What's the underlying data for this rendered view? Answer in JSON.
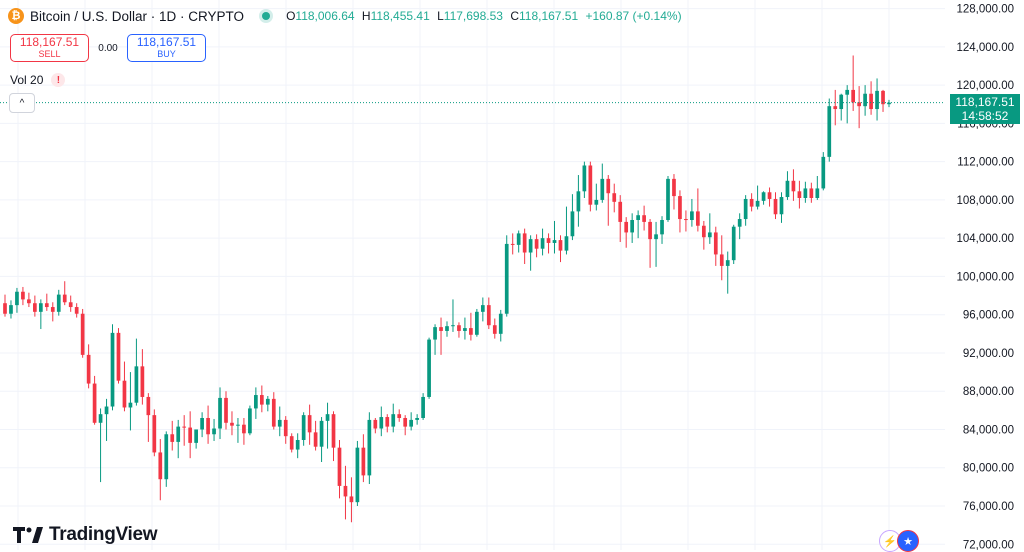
{
  "header": {
    "coin_glyph": "₿",
    "title": "Bitcoin / U.S. Dollar · 1D · CRYPTO",
    "ohlc": {
      "o_key": "O",
      "o": "118,006.64",
      "h_key": "H",
      "h": "118,455.41",
      "l_key": "L",
      "l": "117,698.53",
      "c_key": "C",
      "c": "118,167.51",
      "change": "+160.87 (+0.14%)"
    }
  },
  "trade": {
    "sell_price": "118,167.51",
    "sell_label": "SELL",
    "spread": "0.00",
    "buy_price": "118,167.51",
    "buy_label": "BUY"
  },
  "volume": {
    "label": "Vol 20",
    "warning_glyph": "!"
  },
  "collapse_glyph": "^",
  "last_price": {
    "price": "118,167.51",
    "countdown": "14:58:52"
  },
  "logo": {
    "text": "TradingView"
  },
  "colors": {
    "up": "#089981",
    "down": "#f23645",
    "text": "#131722",
    "grid": "#f0f3fa"
  },
  "chart_data": {
    "type": "candlestick",
    "symbol": "Bitcoin / U.S. Dollar",
    "interval": "1D",
    "y_ticks": [
      "128,000.00",
      "124,000.00",
      "120,000.00",
      "116,000.00",
      "112,000.00",
      "108,000.00",
      "104,000.00",
      "100,000.00",
      "96,000.00",
      "92,000.00",
      "88,000.00",
      "84,000.00",
      "80,000.00",
      "76,000.00",
      "72,000.00"
    ],
    "y_tick_values": [
      128000,
      124000,
      120000,
      116000,
      112000,
      108000,
      104000,
      100000,
      96000,
      92000,
      88000,
      84000,
      80000,
      76000,
      72000
    ],
    "ylim": [
      71400,
      128900
    ],
    "last_price": 118167.51,
    "candles": [
      [
        97200,
        98100,
        95800,
        96100
      ],
      [
        96100,
        97500,
        95600,
        97000
      ],
      [
        97000,
        98800,
        96200,
        98400
      ],
      [
        98400,
        98900,
        97000,
        97600
      ],
      [
        97600,
        98300,
        96800,
        97200
      ],
      [
        97200,
        98000,
        95800,
        96300
      ],
      [
        96300,
        97600,
        94500,
        97200
      ],
      [
        97200,
        98200,
        96400,
        96800
      ],
      [
        96800,
        97300,
        95300,
        96300
      ],
      [
        96300,
        98600,
        95900,
        98100
      ],
      [
        98100,
        99500,
        97000,
        97300
      ],
      [
        97300,
        98000,
        96300,
        96800
      ],
      [
        96800,
        97200,
        95700,
        96100
      ],
      [
        96100,
        96600,
        91500,
        91800
      ],
      [
        91800,
        92900,
        88300,
        88800
      ],
      [
        88800,
        89600,
        84500,
        84700
      ],
      [
        84700,
        86200,
        78500,
        85600
      ],
      [
        85600,
        87200,
        82800,
        86400
      ],
      [
        86400,
        95000,
        86000,
        94100
      ],
      [
        94100,
        94600,
        88800,
        89100
      ],
      [
        89100,
        91100,
        85900,
        86300
      ],
      [
        86300,
        90000,
        83900,
        86800
      ],
      [
        86800,
        93500,
        86500,
        90600
      ],
      [
        90600,
        92400,
        86600,
        87400
      ],
      [
        87400,
        87800,
        82700,
        85500
      ],
      [
        85500,
        86100,
        81200,
        81600
      ],
      [
        81600,
        83000,
        76600,
        78800
      ],
      [
        78800,
        83800,
        78000,
        83500
      ],
      [
        83500,
        84900,
        81800,
        82700
      ],
      [
        82700,
        85000,
        81000,
        84300
      ],
      [
        84300,
        85500,
        82300,
        84200
      ],
      [
        84200,
        85900,
        81000,
        82600
      ],
      [
        82600,
        84000,
        82000,
        84000
      ],
      [
        84000,
        85800,
        83200,
        85200
      ],
      [
        85200,
        86500,
        82500,
        83500
      ],
      [
        83500,
        85100,
        82800,
        84100
      ],
      [
        84100,
        88400,
        83000,
        87300
      ],
      [
        87300,
        88000,
        84000,
        84700
      ],
      [
        84700,
        85900,
        83400,
        84400
      ],
      [
        84400,
        85200,
        82600,
        84500
      ],
      [
        84500,
        85200,
        82400,
        83600
      ],
      [
        83600,
        86500,
        83400,
        86200
      ],
      [
        86200,
        88400,
        85100,
        87600
      ],
      [
        87600,
        88600,
        85800,
        86600
      ],
      [
        86600,
        87500,
        85900,
        87200
      ],
      [
        87200,
        87900,
        84000,
        84300
      ],
      [
        84300,
        86400,
        83300,
        85000
      ],
      [
        85000,
        85400,
        82500,
        83300
      ],
      [
        83300,
        83600,
        81600,
        81900
      ],
      [
        81900,
        83600,
        81000,
        82900
      ],
      [
        82900,
        85800,
        82300,
        85500
      ],
      [
        85500,
        86600,
        82400,
        83700
      ],
      [
        83700,
        84900,
        81800,
        82200
      ],
      [
        82200,
        85300,
        80600,
        84900
      ],
      [
        84900,
        86800,
        82000,
        85600
      ],
      [
        85600,
        85900,
        80700,
        82100
      ],
      [
        82100,
        82900,
        76800,
        78100
      ],
      [
        78100,
        80200,
        74600,
        77000
      ],
      [
        77000,
        79000,
        74300,
        76400
      ],
      [
        76400,
        82800,
        76000,
        82100
      ],
      [
        82100,
        83500,
        78500,
        79200
      ],
      [
        79200,
        85800,
        78300,
        85000
      ],
      [
        85000,
        85200,
        83600,
        84100
      ],
      [
        84100,
        86400,
        83300,
        85300
      ],
      [
        85300,
        85600,
        83700,
        84300
      ],
      [
        84300,
        86700,
        83700,
        85600
      ],
      [
        85600,
        86100,
        84800,
        85200
      ],
      [
        85200,
        85500,
        83400,
        84300
      ],
      [
        84300,
        85800,
        83900,
        85000
      ],
      [
        85000,
        85600,
        84500,
        85200
      ],
      [
        85200,
        87800,
        85000,
        87400
      ],
      [
        87400,
        93600,
        87200,
        93400
      ],
      [
        93400,
        95000,
        91800,
        94700
      ],
      [
        94700,
        95700,
        91800,
        94300
      ],
      [
        94300,
        95300,
        93700,
        94800
      ],
      [
        94800,
        97600,
        94200,
        94900
      ],
      [
        94900,
        95200,
        93600,
        94300
      ],
      [
        94300,
        95700,
        93400,
        94600
      ],
      [
        94600,
        96200,
        93300,
        93900
      ],
      [
        93900,
        96600,
        93700,
        96300
      ],
      [
        96300,
        97800,
        95300,
        97000
      ],
      [
        97000,
        97800,
        94500,
        94900
      ],
      [
        94900,
        95600,
        93500,
        94000
      ],
      [
        94000,
        96500,
        93200,
        96100
      ],
      [
        96100,
        104300,
        95800,
        103400
      ],
      [
        103400,
        104500,
        102300,
        103300
      ],
      [
        103300,
        104800,
        102500,
        104500
      ],
      [
        104500,
        105000,
        101300,
        102500
      ],
      [
        102500,
        104300,
        100600,
        103900
      ],
      [
        103900,
        104400,
        102000,
        102900
      ],
      [
        102900,
        105000,
        102200,
        104000
      ],
      [
        104000,
        104500,
        102400,
        103500
      ],
      [
        103500,
        105800,
        102400,
        103800
      ],
      [
        103800,
        104300,
        101500,
        102700
      ],
      [
        102700,
        107300,
        102300,
        104200
      ],
      [
        104200,
        108600,
        103800,
        106800
      ],
      [
        106800,
        110600,
        105200,
        108900
      ],
      [
        108900,
        112000,
        108200,
        111600
      ],
      [
        111600,
        112000,
        106800,
        107500
      ],
      [
        107500,
        109700,
        106900,
        108000
      ],
      [
        108000,
        111800,
        107700,
        110200
      ],
      [
        110200,
        110600,
        105300,
        108700
      ],
      [
        108700,
        109700,
        106700,
        107800
      ],
      [
        107800,
        108500,
        103600,
        105700
      ],
      [
        105700,
        106200,
        103000,
        104600
      ],
      [
        104600,
        106600,
        103500,
        105900
      ],
      [
        105900,
        106900,
        104000,
        106400
      ],
      [
        106400,
        107400,
        104800,
        105700
      ],
      [
        105700,
        106000,
        100900,
        103900
      ],
      [
        103900,
        105700,
        101000,
        104400
      ],
      [
        104400,
        106300,
        103400,
        105900
      ],
      [
        105900,
        110500,
        105700,
        110200
      ],
      [
        110200,
        110700,
        107000,
        108400
      ],
      [
        108400,
        109000,
        104600,
        106000
      ],
      [
        106000,
        106900,
        104700,
        105900
      ],
      [
        105900,
        108100,
        105200,
        106800
      ],
      [
        106800,
        109200,
        104700,
        105300
      ],
      [
        105300,
        105800,
        102800,
        104100
      ],
      [
        104100,
        106600,
        103400,
        104600
      ],
      [
        104600,
        105200,
        101100,
        102300
      ],
      [
        102300,
        104300,
        99600,
        101100
      ],
      [
        101100,
        102600,
        98200,
        101700
      ],
      [
        101700,
        105400,
        101300,
        105200
      ],
      [
        105200,
        106600,
        103900,
        106000
      ],
      [
        106000,
        108500,
        105300,
        108100
      ],
      [
        108100,
        108700,
        106800,
        107300
      ],
      [
        107300,
        109500,
        107000,
        107900
      ],
      [
        107900,
        108900,
        107500,
        108800
      ],
      [
        108800,
        109300,
        107300,
        108100
      ],
      [
        108100,
        108800,
        106000,
        106500
      ],
      [
        106500,
        108800,
        105600,
        108300
      ],
      [
        108300,
        111000,
        108000,
        110000
      ],
      [
        110000,
        111200,
        107900,
        108900
      ],
      [
        108900,
        110000,
        107100,
        108200
      ],
      [
        108200,
        109900,
        107700,
        109200
      ],
      [
        109200,
        109800,
        107700,
        108200
      ],
      [
        108200,
        110500,
        108000,
        109200
      ],
      [
        109200,
        113000,
        109000,
        112500
      ],
      [
        112500,
        118600,
        112000,
        117800
      ],
      [
        117800,
        119500,
        115800,
        117500
      ],
      [
        117500,
        119100,
        116300,
        119000
      ],
      [
        119000,
        120000,
        116000,
        119500
      ],
      [
        119500,
        123100,
        117300,
        118200
      ],
      [
        118200,
        119900,
        115500,
        117800
      ],
      [
        117800,
        120000,
        116800,
        119100
      ],
      [
        119100,
        120400,
        116900,
        117500
      ],
      [
        117500,
        120700,
        116300,
        119400
      ],
      [
        119400,
        119500,
        117200,
        118006.64
      ],
      [
        118006.64,
        118455.41,
        117698.53,
        118167.51
      ]
    ]
  }
}
